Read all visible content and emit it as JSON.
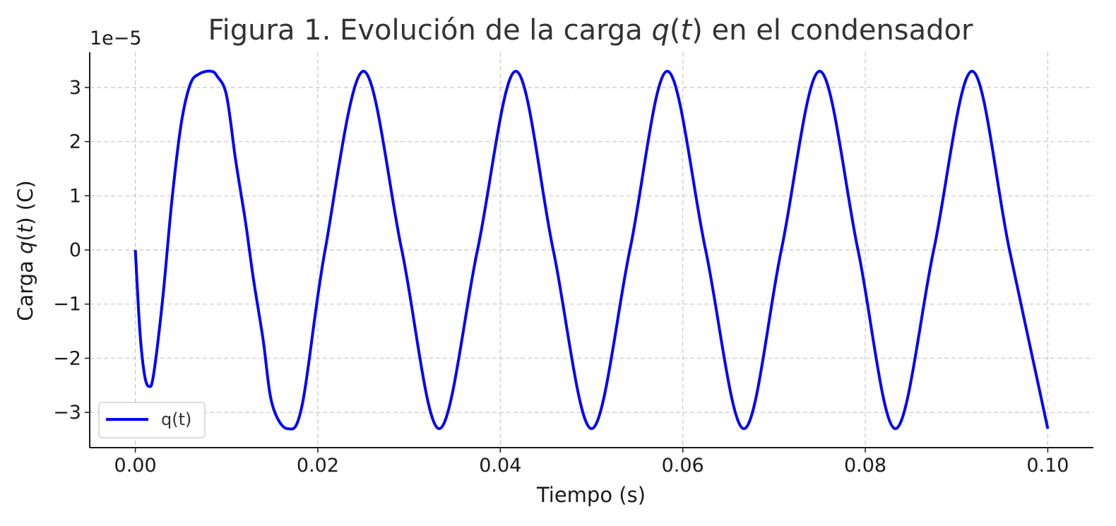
{
  "chart_data": {
    "type": "line",
    "title_prefix": "Figura 1. Evolución de la carga ",
    "title_var": "q",
    "title_paren_open": "(",
    "title_t": "t",
    "title_paren_close": ")",
    "title_suffix": " en el condensador",
    "xlabel": "Tiempo (s)",
    "ylabel_prefix": "Carga ",
    "ylabel_var": "q",
    "ylabel_paren_open": "(",
    "ylabel_t": "t",
    "ylabel_suffix": ") (C)",
    "y_offset_label": "1e−5",
    "xlim": [
      -0.005,
      0.105
    ],
    "ylim": [
      -3.65,
      3.65
    ],
    "x_ticks": [
      0.0,
      0.02,
      0.04,
      0.06,
      0.08,
      0.1
    ],
    "x_tick_labels": [
      "0.00",
      "0.02",
      "0.04",
      "0.06",
      "0.08",
      "0.10"
    ],
    "y_ticks": [
      -3,
      -2,
      -1,
      0,
      1,
      2,
      3
    ],
    "y_tick_labels": [
      "−3",
      "−2",
      "−1",
      "0",
      "1",
      "2",
      "3"
    ],
    "grid": true,
    "legend_position": "lower-left",
    "series": [
      {
        "name": "q(t)",
        "color": "#0000ff",
        "x": [
          0.0,
          0.0005,
          0.001,
          0.0015,
          0.002,
          0.003,
          0.004,
          0.005,
          0.006,
          0.007,
          0.0083,
          0.009,
          0.01,
          0.011,
          0.012,
          0.0125,
          0.013,
          0.014,
          0.015,
          0.0167,
          0.0183,
          0.0208,
          0.025,
          0.0292,
          0.0333,
          0.0375,
          0.0417,
          0.0458,
          0.05,
          0.0542,
          0.0583,
          0.0625,
          0.0667,
          0.0708,
          0.075,
          0.0792,
          0.0833,
          0.0875,
          0.0917,
          0.0958,
          0.1
        ],
        "values": [
          0.0,
          -1.5,
          -2.3,
          -2.52,
          -2.3,
          -0.9,
          0.9,
          2.3,
          3.05,
          3.25,
          3.3,
          3.2,
          2.85,
          1.65,
          0.6,
          0.0,
          -0.6,
          -1.65,
          -2.85,
          -3.3,
          -2.85,
          0.0,
          3.3,
          0.0,
          -3.3,
          0.0,
          3.3,
          0.0,
          -3.3,
          0.0,
          3.3,
          0.0,
          -3.3,
          0.0,
          3.3,
          0.0,
          -3.3,
          0.0,
          3.3,
          0.0,
          -3.3
        ]
      }
    ]
  }
}
